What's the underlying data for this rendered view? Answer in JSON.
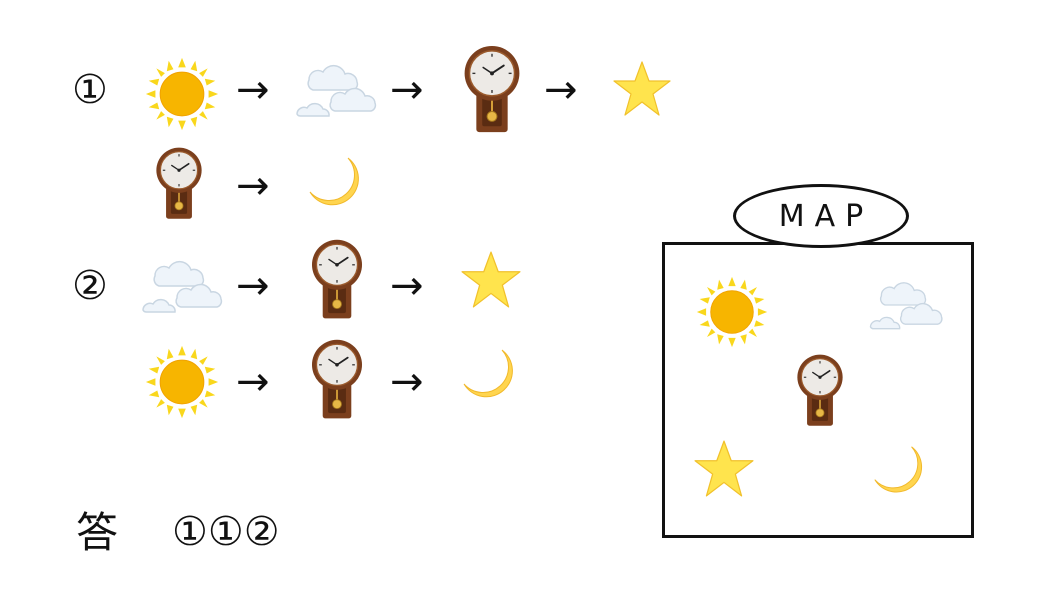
{
  "rows": [
    {
      "label": "①"
    },
    {
      "label": "②"
    }
  ],
  "arrow": "→",
  "icons": {
    "sun": "sun-icon",
    "clouds": "clouds-icon",
    "clock": "pendulum-clock-icon",
    "star": "star-icon",
    "moon": "crescent-moon-icon"
  },
  "map": {
    "label": "MAP"
  },
  "answer": {
    "label": "答",
    "sequence": "①①②"
  },
  "colors": {
    "sun": "#F7B500",
    "sun_rays": "#F9D71C",
    "star": "#FFE44D",
    "moon": "#FFD54F",
    "clock_wood": "#7B3F1D",
    "cloud": "#E9F1F8"
  }
}
